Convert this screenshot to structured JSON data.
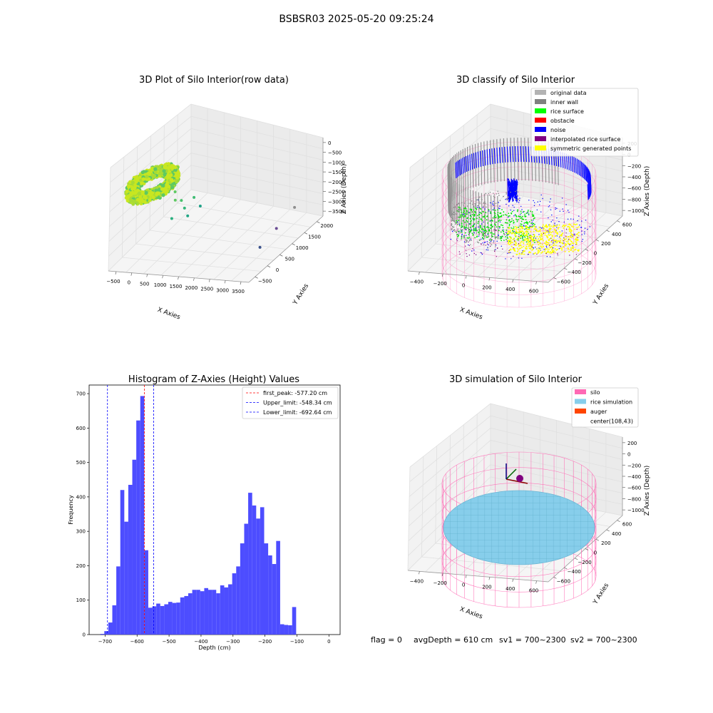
{
  "suptitle": "BSBSR03 2025-05-20 09:25:24",
  "footer": {
    "flag": "flag = 0",
    "avg_depth": "avgDepth = 610 cm",
    "sv1": "sv1 = 700~2300",
    "sv2": "sv2 = 700~2300"
  },
  "chart_data": [
    {
      "type": "scatter",
      "subtype": "3d",
      "title": "3D Plot of Silo Interior(row data)",
      "xlabel": "X Axies",
      "ylabel": "Y Axies",
      "zlabel": "Z Axies (Depth)",
      "x_ticks": [
        "−500",
        "0",
        "500",
        "1000",
        "1500",
        "2000",
        "2500",
        "3000",
        "3500"
      ],
      "y_ticks": [
        "−500",
        "0",
        "500",
        "1000",
        "1500",
        "2000"
      ],
      "z_ticks": [
        "0",
        "−500",
        "−1000",
        "−1500",
        "−2000",
        "−2500",
        "−3000",
        "−3500"
      ],
      "xlim": [
        -600,
        3600
      ],
      "ylim": [
        -600,
        2200
      ],
      "zlim": [
        -3700,
        100
      ],
      "colormap": "viridis",
      "point_cluster": {
        "x_range": [
          -500,
          700
        ],
        "y_range": [
          -500,
          700
        ],
        "z_range": [
          -800,
          -500
        ],
        "color_start": "#c8e620",
        "color_end": "#5ec962"
      },
      "outlier_points": [
        {
          "x": 600,
          "y": 300,
          "z": -1200
        },
        {
          "x": 650,
          "y": 250,
          "z": -1500
        },
        {
          "x": 700,
          "y": 400,
          "z": -1700
        },
        {
          "x": 900,
          "y": 600,
          "z": -1800
        },
        {
          "x": 750,
          "y": 450,
          "z": -2100
        },
        {
          "x": 500,
          "y": 300,
          "z": -2400
        },
        {
          "x": 800,
          "y": 500,
          "z": -2500
        },
        {
          "x": 1000,
          "y": 700,
          "z": -2300
        },
        {
          "x": 3200,
          "y": 1400,
          "z": -3000
        },
        {
          "x": 3100,
          "y": 900,
          "z": -3300
        },
        {
          "x": 3050,
          "y": 400,
          "z": -3500
        }
      ],
      "outlier_colors": [
        "#5ec962",
        "#5ec962",
        "#4ac16d",
        "#3fbc73",
        "#35b779",
        "#2ab07f",
        "#21a685",
        "#1fa187",
        "#8e8e8e",
        "#6a4c93",
        "#3b528b"
      ]
    },
    {
      "type": "scatter",
      "subtype": "3d",
      "title": "3D classify of Silo Interior",
      "xlabel": "X Axies",
      "ylabel": "Y Axies",
      "zlabel": "Z Axies (Depth)",
      "x_ticks": [
        "−400",
        "−200",
        "0",
        "200",
        "400",
        "600"
      ],
      "y_ticks": [
        "−600",
        "−400",
        "−200",
        "0",
        "200",
        "400",
        "600"
      ],
      "z_ticks": [
        "200",
        "0",
        "−200",
        "−400",
        "−600",
        "−800",
        "−1000"
      ],
      "legend_placement": "top-right",
      "legend": [
        {
          "label": "original data",
          "color": "#b3b3b3"
        },
        {
          "label": "inner wall",
          "color": "#808080"
        },
        {
          "label": "rice surface",
          "color": "#00ff00"
        },
        {
          "label": "obstacle",
          "color": "#ff0000"
        },
        {
          "label": "noise",
          "color": "#0000ff"
        },
        {
          "label": "interpolated rice surface",
          "color": "#800080"
        },
        {
          "label": "symmetric generated points",
          "color": "#ffff00"
        }
      ]
    },
    {
      "type": "bar",
      "subtype": "histogram",
      "title": "Histogram of Z-Axies (Height) Values",
      "xlabel": "Depth (cm)",
      "ylabel": "Frequency",
      "xlim": [
        -750,
        35
      ],
      "ylim": [
        0,
        725
      ],
      "x_ticks": [
        -700,
        -600,
        -500,
        -400,
        -300,
        -200,
        -100,
        0
      ],
      "y_ticks": [
        0,
        100,
        200,
        300,
        400,
        500,
        600,
        700
      ],
      "bin_start": -715,
      "bin_width": 12.5,
      "bar_color": "#4d4dff",
      "values": [
        2,
        10,
        35,
        85,
        198,
        420,
        328,
        435,
        508,
        622,
        693,
        245,
        78,
        82,
        90,
        83,
        88,
        95,
        92,
        93,
        108,
        112,
        120,
        130,
        130,
        126,
        135,
        130,
        130,
        120,
        143,
        137,
        146,
        178,
        198,
        265,
        322,
        412,
        375,
        337,
        370,
        265,
        230,
        205,
        272,
        30,
        28,
        27,
        80
      ],
      "vlines": [
        {
          "label": "first_peak: -577.20 cm",
          "x": -577.2,
          "color": "#ff0000"
        },
        {
          "label": "Upper_limit: -548.34 cm",
          "x": -548.34,
          "color": "#0000ff"
        },
        {
          "label": "Lower_limit: -692.64 cm",
          "x": -692.64,
          "color": "#0000ff"
        }
      ],
      "legend_placement": "top-right"
    },
    {
      "type": "scatter",
      "subtype": "3d",
      "title": "3D simulation of Silo Interior",
      "xlabel": "X Axies",
      "ylabel": "Y Axies",
      "zlabel": "Z Axies (Depth)",
      "x_ticks": [
        "−400",
        "−200",
        "0",
        "200",
        "400",
        "600"
      ],
      "y_ticks": [
        "−600",
        "−400",
        "−200",
        "0",
        "200",
        "400",
        "600"
      ],
      "z_ticks": [
        "200",
        "0",
        "−200",
        "−400",
        "−600",
        "−800",
        "−1000"
      ],
      "legend_placement": "top-right",
      "legend": [
        {
          "label": "silo",
          "color": "#ff69b4"
        },
        {
          "label": "rice simulation",
          "color": "#87ceeb"
        },
        {
          "label": "auger",
          "color": "#ff4500"
        },
        {
          "label": "center(108,43)",
          "color": ""
        }
      ]
    }
  ]
}
